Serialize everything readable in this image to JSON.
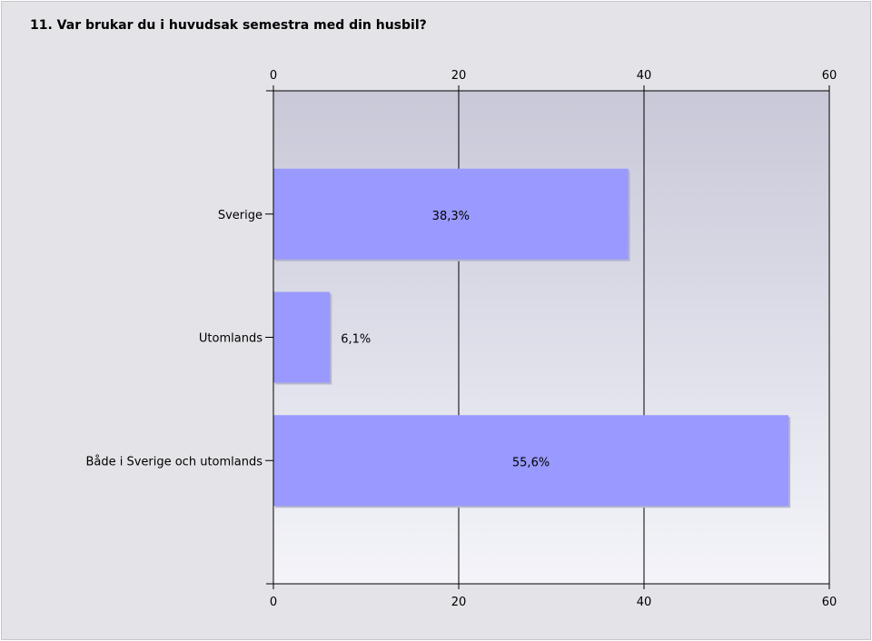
{
  "chart_data": {
    "type": "bar",
    "orientation": "horizontal",
    "title": "11. Var brukar du i huvudsak semestra med din husbil?",
    "categories": [
      "Sverige",
      "Utomlands",
      "Både i Sverige och utomlands"
    ],
    "values": [
      38.3,
      6.1,
      55.6
    ],
    "data_labels": [
      "38,3%",
      "6,1%",
      "55,6%"
    ],
    "xlim": [
      0,
      60
    ],
    "xticks": [
      0,
      20,
      40,
      60
    ],
    "grid": true,
    "bar_color": "#9999ff",
    "plot_gradient_top": "#c8c8d8",
    "plot_gradient_bottom": "#f4f4fa"
  }
}
